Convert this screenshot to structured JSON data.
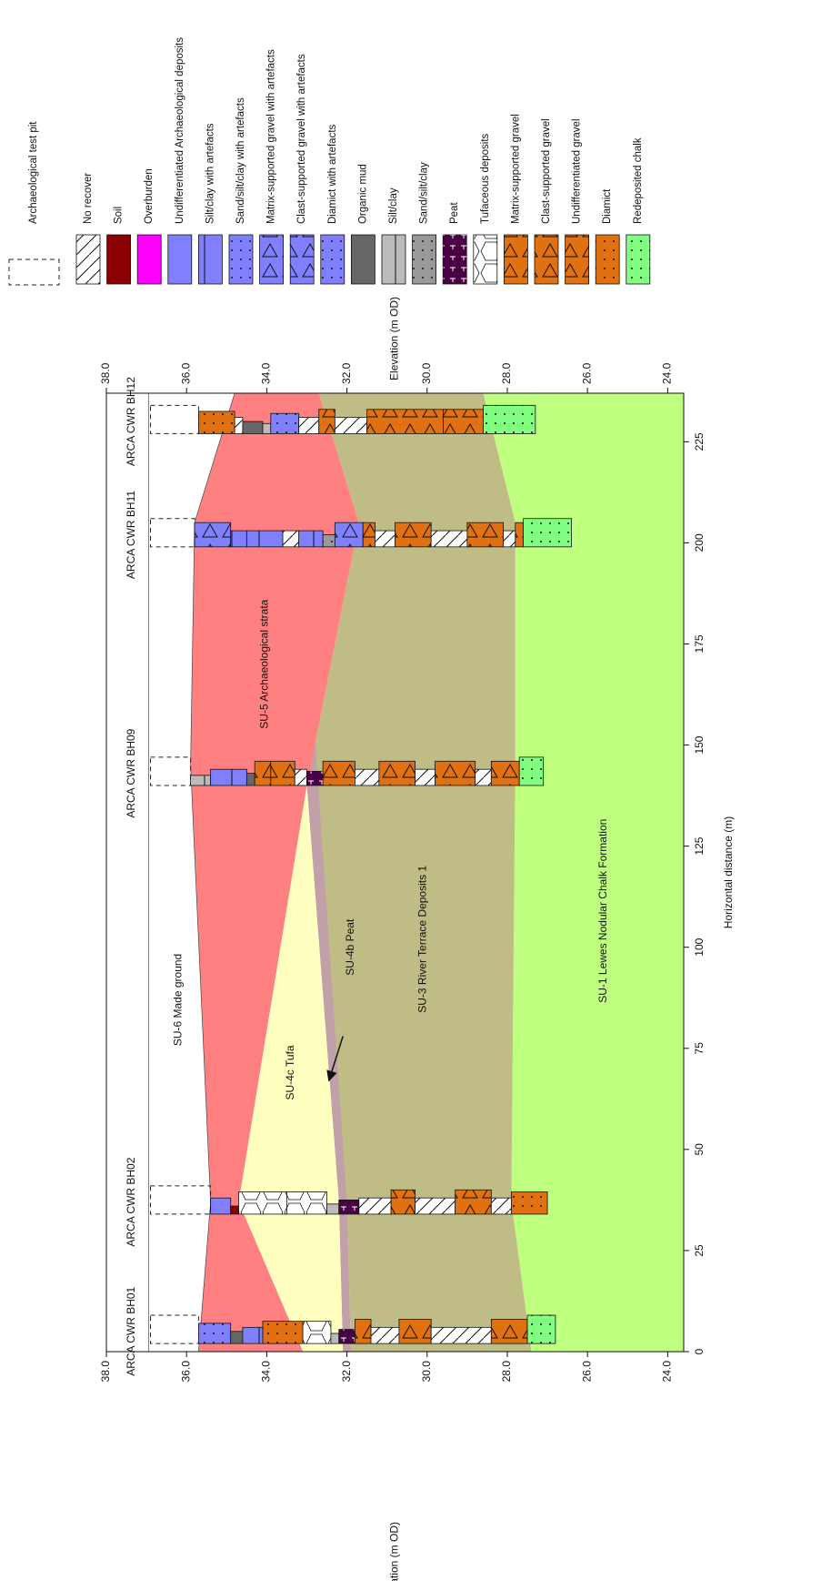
{
  "chart_data": {
    "type": "cross-section",
    "x_label": "Horizontal distance (m)",
    "y_label": "Elevation (m OD)",
    "xlim": [
      0,
      237
    ],
    "ylim": [
      23.6,
      38.0
    ],
    "xticks": [
      0,
      25,
      50,
      75,
      100,
      125,
      150,
      175,
      200,
      225
    ],
    "yticks": [
      {
        "value": 38,
        "label": "38.0"
      },
      {
        "value": 36,
        "label": "36.0"
      },
      {
        "value": 34,
        "label": "34.0"
      },
      {
        "value": 32,
        "label": "32.0"
      },
      {
        "value": 30,
        "label": "30.0"
      },
      {
        "value": 28,
        "label": "28.0"
      },
      {
        "value": 26,
        "label": "26.0"
      },
      {
        "value": 24,
        "label": "24.0"
      }
    ],
    "strata": [
      {
        "name": "SU-1 Lewes Nodular Chalk Formation",
        "color": "#bfff80",
        "x": [
          0,
          37,
          145,
          205,
          237,
          237,
          0
        ],
        "y": [
          27.4,
          27.9,
          27.8,
          27.8,
          28.6,
          23.6,
          23.6
        ]
      },
      {
        "name": "SU-3 River Terrace Deposits 1",
        "color": "#bfbd85",
        "x": [
          0,
          37,
          140,
          205,
          237,
          237,
          205,
          145,
          37,
          0
        ],
        "y": [
          31.9,
          32.0,
          33.0,
          31.7,
          32.7,
          28.6,
          27.8,
          27.8,
          27.9,
          27.4
        ]
      },
      {
        "name": "SU-4b Peat",
        "color": "#c2a0a8",
        "x": [
          0,
          37,
          140,
          152,
          37,
          0
        ],
        "y": [
          32.1,
          32.2,
          33.0,
          32.8,
          32.0,
          31.9
        ]
      },
      {
        "name": "SU-4c Tufa",
        "color": "#ffffc0",
        "x": [
          0,
          37,
          140,
          37,
          0
        ],
        "y": [
          33.1,
          34.7,
          33.0,
          32.2,
          32.1
        ]
      },
      {
        "name": "SU-5 Archaeological strata",
        "color": "#ff8080",
        "x": [
          0,
          37,
          145,
          205,
          237,
          237,
          205,
          140,
          37,
          0
        ],
        "y": [
          35.7,
          35.4,
          35.9,
          35.8,
          34.8,
          32.7,
          31.7,
          33.0,
          34.7,
          33.1
        ]
      },
      {
        "name": "SU-6 Made ground",
        "color": "#ffffff",
        "x": [
          0,
          237,
          237,
          205,
          145,
          37,
          0
        ],
        "y": [
          36.95,
          36.95,
          34.8,
          35.8,
          35.9,
          35.4,
          35.7
        ]
      }
    ],
    "boreholes": [
      {
        "name": "ARCA CWR BH01",
        "x": 2,
        "test_pit": [
          36.9,
          35.7
        ],
        "units": [
          {
            "top": 35.7,
            "base": 34.9,
            "lithology": "Sand/silt/clay with artefacts"
          },
          {
            "top": 34.9,
            "base": 34.6,
            "lithology": "Organic mud"
          },
          {
            "top": 34.6,
            "base": 34.1,
            "lithology": "Silt/clay with artefacts"
          },
          {
            "top": 34.1,
            "base": 33.1,
            "lithology": "Diamict"
          },
          {
            "top": 33.1,
            "base": 32.4,
            "lithology": "Tufaceous deposits"
          },
          {
            "top": 32.4,
            "base": 32.2,
            "lithology": "Silt/clay"
          },
          {
            "top": 32.2,
            "base": 31.8,
            "lithology": "Peat"
          },
          {
            "top": 31.8,
            "base": 31.4,
            "lithology": "Clast-supported gravel"
          },
          {
            "top": 31.4,
            "base": 30.7,
            "lithology": "No recover"
          },
          {
            "top": 30.7,
            "base": 29.9,
            "lithology": "Matrix-supported gravel"
          },
          {
            "top": 29.9,
            "base": 28.4,
            "lithology": "No recover"
          },
          {
            "top": 28.4,
            "base": 27.5,
            "lithology": "Clast-supported gravel"
          },
          {
            "top": 27.5,
            "base": 26.8,
            "lithology": "Redeposited chalk"
          }
        ]
      },
      {
        "name": "ARCA CWR BH02",
        "x": 34,
        "test_pit": [
          36.9,
          35.4
        ],
        "units": [
          {
            "top": 35.4,
            "base": 34.9,
            "lithology": "Silt/clay with artefacts"
          },
          {
            "top": 34.9,
            "base": 34.7,
            "lithology": "Soil"
          },
          {
            "top": 34.7,
            "base": 33.5,
            "lithology": "Tufaceous deposits"
          },
          {
            "top": 33.5,
            "base": 32.5,
            "lithology": "Tufaceous deposits"
          },
          {
            "top": 32.5,
            "base": 32.2,
            "lithology": "Silt/clay"
          },
          {
            "top": 32.2,
            "base": 31.7,
            "lithology": "Peat"
          },
          {
            "top": 31.7,
            "base": 30.9,
            "lithology": "No recover"
          },
          {
            "top": 30.9,
            "base": 30.3,
            "lithology": "Clast-supported gravel"
          },
          {
            "top": 30.3,
            "base": 29.3,
            "lithology": "No recover"
          },
          {
            "top": 29.3,
            "base": 28.4,
            "lithology": "Clast-supported gravel"
          },
          {
            "top": 28.4,
            "base": 27.9,
            "lithology": "No recover"
          },
          {
            "top": 27.9,
            "base": 27.0,
            "lithology": "Diamict"
          }
        ]
      },
      {
        "name": "ARCA CWR BH09",
        "x": 140,
        "test_pit": [
          36.9,
          35.9
        ],
        "units": [
          {
            "top": 35.9,
            "base": 35.4,
            "lithology": "Silt/clay"
          },
          {
            "top": 35.4,
            "base": 34.5,
            "lithology": "Silt/clay with artefacts"
          },
          {
            "top": 34.5,
            "base": 34.3,
            "lithology": "Organic mud"
          },
          {
            "top": 34.3,
            "base": 33.9,
            "lithology": "Undifferentiated gravel"
          },
          {
            "top": 33.9,
            "base": 33.3,
            "lithology": "Clast-supported gravel"
          },
          {
            "top": 33.3,
            "base": 33.0,
            "lithology": "No recover"
          },
          {
            "top": 33.0,
            "base": 32.6,
            "lithology": "Peat"
          },
          {
            "top": 32.6,
            "base": 31.8,
            "lithology": "Clast-supported gravel"
          },
          {
            "top": 31.8,
            "base": 31.2,
            "lithology": "No recover"
          },
          {
            "top": 31.2,
            "base": 30.3,
            "lithology": "Clast-supported gravel"
          },
          {
            "top": 30.3,
            "base": 29.8,
            "lithology": "No recover"
          },
          {
            "top": 29.8,
            "base": 28.8,
            "lithology": "Matrix-supported gravel"
          },
          {
            "top": 28.8,
            "base": 28.4,
            "lithology": "No recover"
          },
          {
            "top": 28.4,
            "base": 27.7,
            "lithology": "Clast-supported gravel"
          },
          {
            "top": 27.7,
            "base": 27.1,
            "lithology": "Redeposited chalk"
          }
        ]
      },
      {
        "name": "ARCA CWR BH11",
        "x": 199,
        "test_pit": [
          36.9,
          35.8
        ],
        "units": [
          {
            "top": 35.8,
            "base": 34.9,
            "lithology": "Matrix-supported gravel with artefacts"
          },
          {
            "top": 34.9,
            "base": 34.5,
            "lithology": "Silt/clay with artefacts"
          },
          {
            "top": 34.5,
            "base": 33.6,
            "lithology": "Silt/clay with artefacts"
          },
          {
            "top": 33.6,
            "base": 33.2,
            "lithology": "No recover"
          },
          {
            "top": 33.2,
            "base": 32.6,
            "lithology": "Silt/clay with artefacts"
          },
          {
            "top": 32.6,
            "base": 32.3,
            "lithology": "Sand/silt/clay"
          },
          {
            "top": 32.3,
            "base": 31.6,
            "lithology": "Matrix-supported gravel with artefacts"
          },
          {
            "top": 31.6,
            "base": 31.3,
            "lithology": "Clast-supported gravel"
          },
          {
            "top": 31.3,
            "base": 30.8,
            "lithology": "No recover"
          },
          {
            "top": 30.8,
            "base": 29.9,
            "lithology": "Matrix-supported gravel"
          },
          {
            "top": 29.9,
            "base": 29.0,
            "lithology": "No recover"
          },
          {
            "top": 29.0,
            "base": 28.1,
            "lithology": "Clast-supported gravel"
          },
          {
            "top": 28.1,
            "base": 27.8,
            "lithology": "No recover"
          },
          {
            "top": 27.8,
            "base": 27.6,
            "lithology": "Matrix-supported gravel"
          },
          {
            "top": 27.6,
            "base": 26.4,
            "lithology": "Redeposited chalk"
          }
        ]
      },
      {
        "name": "ARCA CWR BH12",
        "x": 227,
        "test_pit": [
          36.9,
          35.7
        ],
        "units": [
          {
            "top": 35.7,
            "base": 34.8,
            "lithology": "Diamict"
          },
          {
            "top": 34.8,
            "base": 34.6,
            "lithology": "No recover"
          },
          {
            "top": 34.6,
            "base": 34.1,
            "lithology": "Organic mud"
          },
          {
            "top": 34.1,
            "base": 33.9,
            "lithology": "Silt/clay"
          },
          {
            "top": 33.9,
            "base": 33.2,
            "lithology": "Sand/silt/clay with artefacts"
          },
          {
            "top": 33.2,
            "base": 32.7,
            "lithology": "No recover"
          },
          {
            "top": 32.7,
            "base": 32.3,
            "lithology": "Undifferentiated gravel"
          },
          {
            "top": 32.3,
            "base": 31.5,
            "lithology": "No recover"
          },
          {
            "top": 31.5,
            "base": 29.6,
            "lithology": "Clast-supported gravel"
          },
          {
            "top": 29.6,
            "base": 28.6,
            "lithology": "Matrix-supported gravel"
          },
          {
            "top": 28.6,
            "base": 27.3,
            "lithology": "Redeposited chalk"
          }
        ]
      }
    ],
    "legend": [
      {
        "label": "Archaeological test pit"
      },
      {
        "label": "No recover",
        "color": "#ffffff"
      },
      {
        "label": "Soil",
        "color": "#8b0000"
      },
      {
        "label": "Overburden",
        "color": "#ff00ff"
      },
      {
        "label": "Undifferentiated Archaeological deposits",
        "color": "#8080ff"
      },
      {
        "label": "Silt/clay with artefacts",
        "color": "#8080ff"
      },
      {
        "label": "Sand/silt/clay with artefacts",
        "color": "#8080ff"
      },
      {
        "label": "Matrix-supported gravel with artefacts",
        "color": "#8080ff"
      },
      {
        "label": "Clast-supported gravel with artefacts",
        "color": "#8080ff"
      },
      {
        "label": "Diamict with artefacts",
        "color": "#8080ff"
      },
      {
        "label": "Organic mud",
        "color": "#666666"
      },
      {
        "label": "Silt/clay",
        "color": "#bbbbbb"
      },
      {
        "label": "Sand/silt/clay",
        "color": "#999999"
      },
      {
        "label": "Peat",
        "color": "#4a0045"
      },
      {
        "label": "Tufaceous deposits",
        "color": "#ffffff"
      },
      {
        "label": "Matrix-supported gravel",
        "color": "#e07010"
      },
      {
        "label": "Clast-supported gravel",
        "color": "#e07010"
      },
      {
        "label": "Undifferentiated gravel",
        "color": "#e07010"
      },
      {
        "label": "Diamict",
        "color": "#e07010"
      },
      {
        "label": "Redeposited chalk",
        "color": "#80ff80"
      }
    ]
  }
}
